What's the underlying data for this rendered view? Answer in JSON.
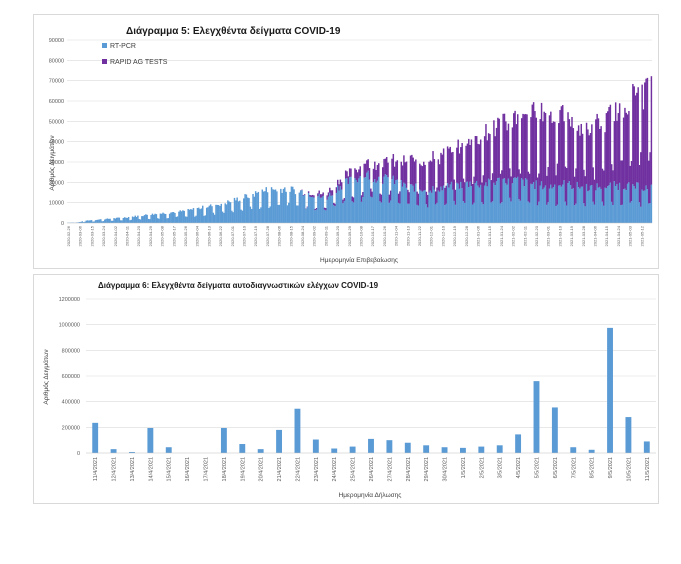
{
  "chart_data": [
    {
      "type": "bar",
      "stacked": true,
      "title": "Διάγραμμα 5: Ελεγχθέντα δείγματα COVID-19",
      "xlabel": "Ημερομηνία Επιβεβαίωσης",
      "ylabel": "Αριθμός Δειγμάτων",
      "ylim": [
        0,
        90000
      ],
      "yticks": [
        "0",
        "10000",
        "20000",
        "30000",
        "40000",
        "50000",
        "60000",
        "70000",
        "80000",
        "90000"
      ],
      "legend_position": "top-left",
      "colors": {
        "rtpcr": "#5b9bd5",
        "rapid": "#7030a0"
      },
      "x_ticks": [
        "2020-02-26",
        "2020-03-06",
        "2020-03-15",
        "2020-03-24",
        "2020-04-02",
        "2020-04-11",
        "2020-04-20",
        "2020-04-29",
        "2020-05-08",
        "2020-05-17",
        "2020-05-26",
        "2020-06-04",
        "2020-06-13",
        "2020-06-22",
        "2020-07-01",
        "2020-07-10",
        "2020-07-19",
        "2020-07-28",
        "2020-08-06",
        "2020-08-15",
        "2020-08-24",
        "2020-09-02",
        "2020-09-11",
        "2020-09-20",
        "2020-09-29",
        "2020-10-08",
        "2020-10-17",
        "2020-10-26",
        "2020-11-04",
        "2020-11-13",
        "2020-11-22",
        "2020-12-01",
        "2020-12-10",
        "2020-12-19",
        "2020-12-28",
        "2021-01-06",
        "2021-01-15",
        "2021-01-24",
        "2021-02-02",
        "2021-02-11",
        "2021-02-20",
        "2021-03-01",
        "2021-03-10",
        "2021-03-19",
        "2021-03-28",
        "2021-04-06",
        "2021-04-15",
        "2021-04-24",
        "2021-05-03",
        "2021-05-12"
      ],
      "series": [
        {
          "name": "RT-PCR",
          "anchors": [
            [
              0,
              100
            ],
            [
              8,
              300
            ],
            [
              14,
              1200
            ],
            [
              30,
              2000
            ],
            [
              45,
              2800
            ],
            [
              60,
              4000
            ],
            [
              75,
              5000
            ],
            [
              90,
              6000
            ],
            [
              105,
              8000
            ],
            [
              120,
              10000
            ],
            [
              135,
              13000
            ],
            [
              150,
              16000
            ],
            [
              165,
              17000
            ],
            [
              180,
              15000
            ],
            [
              195,
              12000
            ],
            [
              205,
              18000
            ],
            [
              215,
              21000
            ],
            [
              225,
              24000
            ],
            [
              235,
              22000
            ],
            [
              245,
              21000
            ],
            [
              255,
              18000
            ],
            [
              265,
              17000
            ],
            [
              275,
              16500
            ],
            [
              285,
              17500
            ],
            [
              295,
              18500
            ],
            [
              305,
              19500
            ],
            [
              315,
              19000
            ],
            [
              325,
              20500
            ],
            [
              335,
              21500
            ],
            [
              345,
              20000
            ],
            [
              355,
              18500
            ],
            [
              365,
              18000
            ],
            [
              375,
              19000
            ],
            [
              385,
              18000
            ],
            [
              395,
              17500
            ],
            [
              405,
              18000
            ],
            [
              420,
              18500
            ],
            [
              434,
              17500
            ],
            [
              441,
              17000
            ]
          ]
        },
        {
          "name": "RAPID AG TESTS",
          "anchors": [
            [
              0,
              0
            ],
            [
              175,
              0
            ],
            [
              180,
              500
            ],
            [
              190,
              1500
            ],
            [
              200,
              2500
            ],
            [
              210,
              3500
            ],
            [
              220,
              5000
            ],
            [
              230,
              7000
            ],
            [
              240,
              8000
            ],
            [
              250,
              10000
            ],
            [
              260,
              13000
            ],
            [
              270,
              14000
            ],
            [
              280,
              15000
            ],
            [
              290,
              17000
            ],
            [
              300,
              20000
            ],
            [
              310,
              23000
            ],
            [
              320,
              26000
            ],
            [
              330,
              27000
            ],
            [
              340,
              30000
            ],
            [
              350,
              33000
            ],
            [
              360,
              35000
            ],
            [
              370,
              34000
            ],
            [
              380,
              31000
            ],
            [
              390,
              28000
            ],
            [
              400,
              30000
            ],
            [
              410,
              33000
            ],
            [
              420,
              38000
            ],
            [
              430,
              44000
            ],
            [
              437,
              48000
            ],
            [
              441,
              45000
            ]
          ]
        }
      ]
    },
    {
      "type": "bar",
      "title": "Διάγραμμα 6: Ελεγχθέντα δείγματα αυτοδιαγνωστικών ελέγχων COVID-19",
      "xlabel": "Ημερομηνία Δήλωσης",
      "ylabel": "Αριθμός Δειγμάτων",
      "ylim": [
        0,
        1200000
      ],
      "yticks": [
        "0",
        "200000",
        "400000",
        "600000",
        "800000",
        "1000000",
        "1200000"
      ],
      "color": "#5b9bd5",
      "categories": [
        "11/4/2021",
        "12/4/2021",
        "13/4/2021",
        "14/4/2021",
        "15/4/2021",
        "16/4/2021",
        "17/4/2021",
        "18/4/2021",
        "19/4/2021",
        "20/4/2021",
        "21/4/2021",
        "22/4/2021",
        "23/4/2021",
        "24/4/2021",
        "25/4/2021",
        "26/4/2021",
        "27/4/2021",
        "28/4/2021",
        "29/4/2021",
        "30/4/2021",
        "1/5/2021",
        "2/5/2021",
        "3/5/2021",
        "4/5/2021",
        "5/5/2021",
        "6/5/2021",
        "7/5/2021",
        "8/5/2021",
        "9/5/2021",
        "10/5/2021",
        "11/5/2021"
      ],
      "values": [
        235000,
        30000,
        8000,
        195000,
        45000,
        0,
        0,
        195000,
        70000,
        30000,
        180000,
        345000,
        105000,
        35000,
        50000,
        110000,
        100000,
        80000,
        60000,
        45000,
        40000,
        50000,
        60000,
        145000,
        560000,
        355000,
        45000,
        25000,
        975000,
        280000,
        90000
      ]
    }
  ]
}
